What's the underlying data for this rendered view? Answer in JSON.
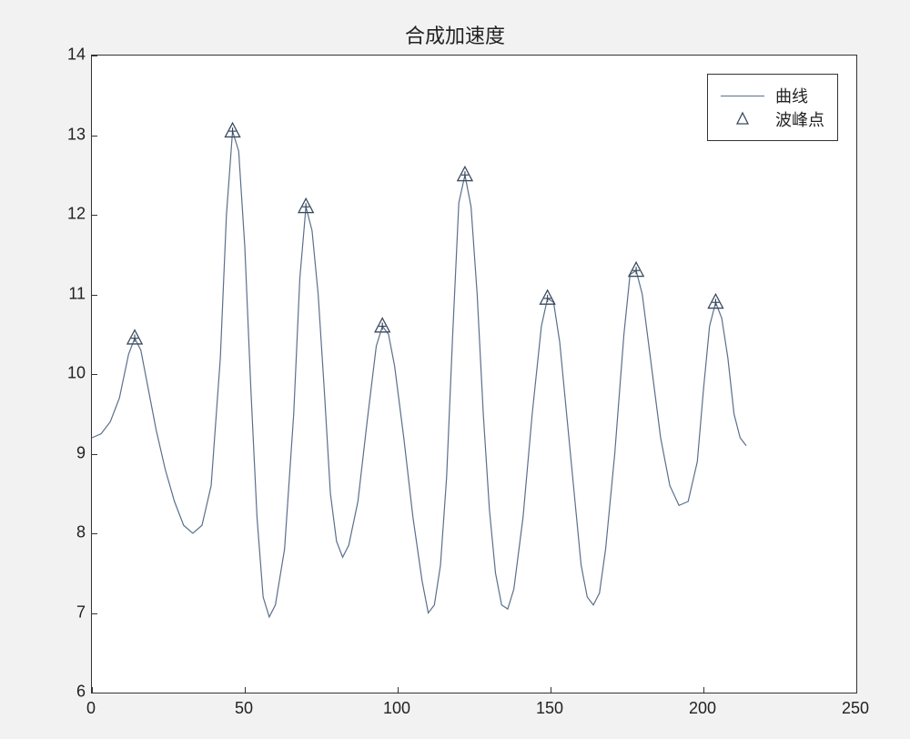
{
  "chart": {
    "type": "line",
    "title": "合成加速度",
    "title_fontsize": 22,
    "background_color": "#f2f2f2",
    "plot_background": "#ffffff",
    "axis_color": "#333333",
    "line_color": "#5b6f8c",
    "line_width": 1.2,
    "marker_edge_color": "#3a4a5c",
    "marker_fill_color": "none",
    "marker_style": "triangle",
    "marker_size": 9,
    "marker_center_cross": true,
    "label_fontsize": 18,
    "xlim": [
      0,
      250
    ],
    "ylim": [
      6,
      14
    ],
    "xticks": [
      0,
      50,
      100,
      150,
      200,
      250
    ],
    "yticks": [
      6,
      7,
      8,
      9,
      10,
      11,
      12,
      13,
      14
    ],
    "legend": {
      "position": "top-right",
      "border_color": "#333333",
      "items": [
        {
          "type": "line",
          "label": "曲线"
        },
        {
          "type": "marker",
          "label": "波峰点"
        }
      ]
    },
    "curve": [
      [
        0,
        9.2
      ],
      [
        3,
        9.25
      ],
      [
        6,
        9.4
      ],
      [
        9,
        9.7
      ],
      [
        12,
        10.25
      ],
      [
        14,
        10.45
      ],
      [
        16,
        10.3
      ],
      [
        18,
        9.9
      ],
      [
        21,
        9.3
      ],
      [
        24,
        8.8
      ],
      [
        27,
        8.4
      ],
      [
        30,
        8.1
      ],
      [
        33,
        8.0
      ],
      [
        36,
        8.1
      ],
      [
        39,
        8.6
      ],
      [
        42,
        10.2
      ],
      [
        44,
        12.0
      ],
      [
        46,
        13.05
      ],
      [
        48,
        12.8
      ],
      [
        50,
        11.6
      ],
      [
        52,
        9.8
      ],
      [
        54,
        8.2
      ],
      [
        56,
        7.2
      ],
      [
        58,
        6.95
      ],
      [
        60,
        7.1
      ],
      [
        63,
        7.8
      ],
      [
        66,
        9.5
      ],
      [
        68,
        11.2
      ],
      [
        70,
        12.1
      ],
      [
        72,
        11.8
      ],
      [
        74,
        11.0
      ],
      [
        76,
        9.8
      ],
      [
        78,
        8.5
      ],
      [
        80,
        7.9
      ],
      [
        82,
        7.7
      ],
      [
        84,
        7.85
      ],
      [
        87,
        8.4
      ],
      [
        90,
        9.4
      ],
      [
        93,
        10.35
      ],
      [
        95,
        10.6
      ],
      [
        97,
        10.5
      ],
      [
        99,
        10.1
      ],
      [
        102,
        9.2
      ],
      [
        105,
        8.2
      ],
      [
        108,
        7.4
      ],
      [
        110,
        7.0
      ],
      [
        112,
        7.1
      ],
      [
        114,
        7.6
      ],
      [
        116,
        8.7
      ],
      [
        118,
        10.5
      ],
      [
        120,
        12.15
      ],
      [
        122,
        12.5
      ],
      [
        124,
        12.1
      ],
      [
        126,
        11.0
      ],
      [
        128,
        9.5
      ],
      [
        130,
        8.3
      ],
      [
        132,
        7.5
      ],
      [
        134,
        7.1
      ],
      [
        136,
        7.05
      ],
      [
        138,
        7.3
      ],
      [
        141,
        8.2
      ],
      [
        144,
        9.5
      ],
      [
        147,
        10.6
      ],
      [
        149,
        10.95
      ],
      [
        151,
        10.9
      ],
      [
        153,
        10.4
      ],
      [
        155,
        9.6
      ],
      [
        158,
        8.4
      ],
      [
        160,
        7.6
      ],
      [
        162,
        7.2
      ],
      [
        164,
        7.1
      ],
      [
        166,
        7.25
      ],
      [
        168,
        7.8
      ],
      [
        171,
        9.0
      ],
      [
        174,
        10.5
      ],
      [
        176,
        11.25
      ],
      [
        178,
        11.3
      ],
      [
        180,
        11.0
      ],
      [
        183,
        10.1
      ],
      [
        186,
        9.2
      ],
      [
        189,
        8.6
      ],
      [
        192,
        8.35
      ],
      [
        195,
        8.4
      ],
      [
        198,
        8.9
      ],
      [
        200,
        9.8
      ],
      [
        202,
        10.6
      ],
      [
        204,
        10.9
      ],
      [
        206,
        10.7
      ],
      [
        208,
        10.2
      ],
      [
        210,
        9.5
      ],
      [
        212,
        9.2
      ],
      [
        214,
        9.1
      ]
    ],
    "peaks": [
      [
        14,
        10.45
      ],
      [
        46,
        13.05
      ],
      [
        70,
        12.1
      ],
      [
        95,
        10.6
      ],
      [
        122,
        12.5
      ],
      [
        149,
        10.95
      ],
      [
        178,
        11.3
      ],
      [
        204,
        10.9
      ]
    ]
  }
}
